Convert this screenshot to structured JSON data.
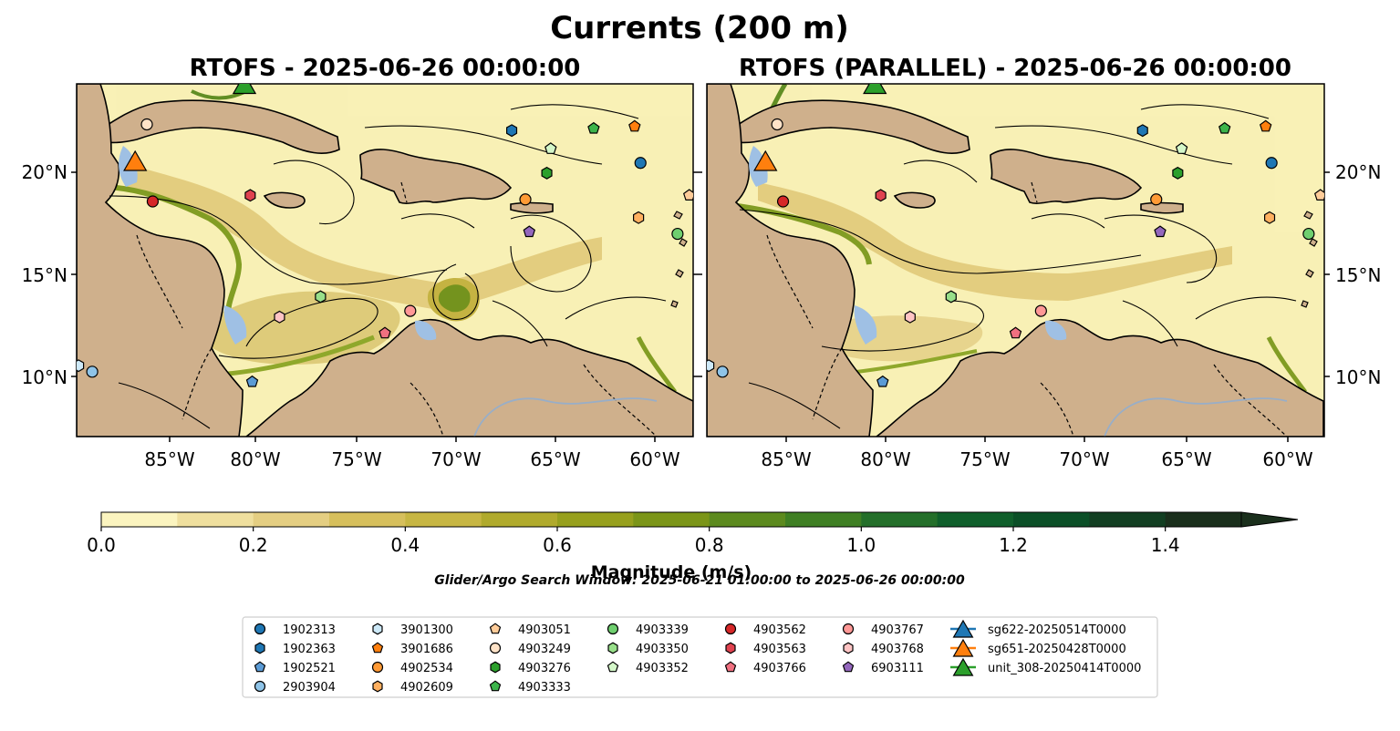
{
  "suptitle": "Currents (200 m)",
  "panels": [
    {
      "title": "RTOFS - 2025-06-26 00:00:00",
      "lat_labels": [
        "20°N",
        "15°N",
        "10°N"
      ],
      "lon_labels": [
        "85°W",
        "80°W",
        "75°W",
        "70°W",
        "65°W",
        "60°W"
      ]
    },
    {
      "title": "RTOFS (PARALLEL) - 2025-06-26 00:00:00",
      "lat_labels": [
        "20°N",
        "15°N",
        "10°N"
      ],
      "lon_labels": [
        "85°W",
        "80°W",
        "75°W",
        "70°W",
        "65°W",
        "60°W"
      ]
    }
  ],
  "map_extent": {
    "lon": [
      -89.6,
      -58.0
    ],
    "lat": [
      7.0,
      24.4
    ]
  },
  "colorbar": {
    "label": "Magnitude (m/s)",
    "ticks": [
      "0.0",
      "0.2",
      "0.4",
      "0.6",
      "0.8",
      "1.0",
      "1.2",
      "1.4"
    ],
    "range": [
      0.0,
      1.5
    ],
    "colors": [
      "#fbf4bf",
      "#efdf9e",
      "#e4ce82",
      "#d6bf5c",
      "#c7b643",
      "#b0aa2c",
      "#97a01d",
      "#7b9518",
      "#5c8a1e",
      "#3f7f23",
      "#246f2a",
      "#105f2b",
      "#0b4f27",
      "#123f22",
      "#1a2f1c"
    ],
    "extend": "max"
  },
  "search_window": "Glider/Argo Search Window: 2025-06-21 01:00:00 to 2025-06-26 00:00:00",
  "legend": {
    "columns": [
      [
        {
          "label": "1902313",
          "marker": "circle",
          "color": "#1f77b4"
        },
        {
          "label": "1902363",
          "marker": "hexagon",
          "color": "#1f77b4"
        },
        {
          "label": "1902521",
          "marker": "pentagon",
          "color": "#5b9bd5"
        },
        {
          "label": "2903904",
          "marker": "circle",
          "color": "#8fc4e8"
        }
      ],
      [
        {
          "label": "3901300",
          "marker": "hexagon",
          "color": "#cde9f8"
        },
        {
          "label": "3901686",
          "marker": "pentagon",
          "color": "#ff7f0e"
        },
        {
          "label": "4902534",
          "marker": "circle",
          "color": "#ff9a35"
        },
        {
          "label": "4902609",
          "marker": "hexagon",
          "color": "#ffb060"
        }
      ],
      [
        {
          "label": "4903051",
          "marker": "pentagon",
          "color": "#ffcc99"
        },
        {
          "label": "4903249",
          "marker": "circle",
          "color": "#ffe3c8"
        },
        {
          "label": "4903276",
          "marker": "hexagon",
          "color": "#2ca02c"
        },
        {
          "label": "4903333",
          "marker": "pentagon",
          "color": "#3cb44b"
        }
      ],
      [
        {
          "label": "4903339",
          "marker": "circle",
          "color": "#6fcf6f"
        },
        {
          "label": "4903350",
          "marker": "hexagon",
          "color": "#98df8a"
        },
        {
          "label": "4903352",
          "marker": "pentagon",
          "color": "#d4f7c9"
        }
      ],
      [
        {
          "label": "4903562",
          "marker": "circle",
          "color": "#d62728"
        },
        {
          "label": "4903563",
          "marker": "hexagon",
          "color": "#e0424f"
        },
        {
          "label": "4903766",
          "marker": "pentagon",
          "color": "#f07080"
        }
      ],
      [
        {
          "label": "4903767",
          "marker": "circle",
          "color": "#ff9896"
        },
        {
          "label": "4903768",
          "marker": "hexagon",
          "color": "#ffc4c4"
        },
        {
          "label": "6903111",
          "marker": "pentagon",
          "color": "#9467bd"
        }
      ],
      [
        {
          "label": "sg622-20250514T0000",
          "marker": "triangle",
          "color": "#1f77b4"
        },
        {
          "label": "sg651-20250428T0000",
          "marker": "triangle",
          "color": "#ff7f0e"
        },
        {
          "label": "unit_308-20250414T0000",
          "marker": "triangle",
          "color": "#2ca02c"
        }
      ]
    ]
  },
  "floats": [
    {
      "id": "1902313",
      "lon": -60.7,
      "lat": 20.5
    },
    {
      "id": "1902363",
      "lon": -67.3,
      "lat": 22.1
    },
    {
      "id": "1902521",
      "lon": -80.6,
      "lat": 9.7
    },
    {
      "id": "2903904",
      "lon": -88.8,
      "lat": 10.2
    },
    {
      "id": "3901300",
      "lon": -89.5,
      "lat": 10.5
    },
    {
      "id": "3901686",
      "lon": -61.0,
      "lat": 22.3
    },
    {
      "id": "4902534",
      "lon": -66.6,
      "lat": 18.7
    },
    {
      "id": "4902609",
      "lon": -60.8,
      "lat": 17.8
    },
    {
      "id": "4903051",
      "lon": -58.2,
      "lat": 18.9
    },
    {
      "id": "4903249",
      "lon": -86.0,
      "lat": 22.4
    },
    {
      "id": "4903276",
      "lon": -65.5,
      "lat": 20.0
    },
    {
      "id": "4903333",
      "lon": -63.1,
      "lat": 22.2
    },
    {
      "id": "4903339",
      "lon": -58.8,
      "lat": 17.0
    },
    {
      "id": "4903350",
      "lon": -77.1,
      "lat": 13.9
    },
    {
      "id": "4903352",
      "lon": -65.3,
      "lat": 21.2
    },
    {
      "id": "4903562",
      "lon": -85.7,
      "lat": 18.6
    },
    {
      "id": "4903563",
      "lon": -80.7,
      "lat": 18.9
    },
    {
      "id": "4903766",
      "lon": -73.8,
      "lat": 12.1
    },
    {
      "id": "4903767",
      "lon": -72.5,
      "lat": 13.2
    },
    {
      "id": "4903768",
      "lon": -79.2,
      "lat": 12.9
    },
    {
      "id": "6903111",
      "lon": -66.4,
      "lat": 17.1
    }
  ],
  "gliders": [
    {
      "id": "sg651-20250428T0000",
      "lon": -86.6,
      "lat": 20.6
    },
    {
      "id": "unit_308-20250414T0000",
      "lon": -81.0,
      "lat": 24.4
    }
  ]
}
